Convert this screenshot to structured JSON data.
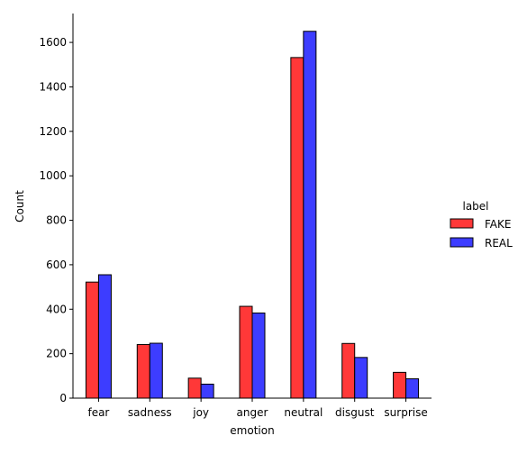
{
  "chart_data": {
    "type": "bar",
    "title": "",
    "xlabel": "emotion",
    "ylabel": "Count",
    "categories": [
      "fear",
      "sadness",
      "joy",
      "anger",
      "neutral",
      "disgust",
      "surprise"
    ],
    "series": [
      {
        "name": "FAKE",
        "color": "#ff3838",
        "values": [
          522,
          241,
          90,
          413,
          1532,
          246,
          116
        ]
      },
      {
        "name": "REAL",
        "color": "#3d3dff",
        "values": [
          555,
          247,
          63,
          383,
          1650,
          183,
          87
        ]
      }
    ],
    "ylim": [
      0,
      1730
    ],
    "yticks": [
      0,
      200,
      400,
      600,
      800,
      1000,
      1200,
      1400,
      1600
    ],
    "grid": false,
    "legend": {
      "title": "label",
      "placement": "right"
    }
  }
}
